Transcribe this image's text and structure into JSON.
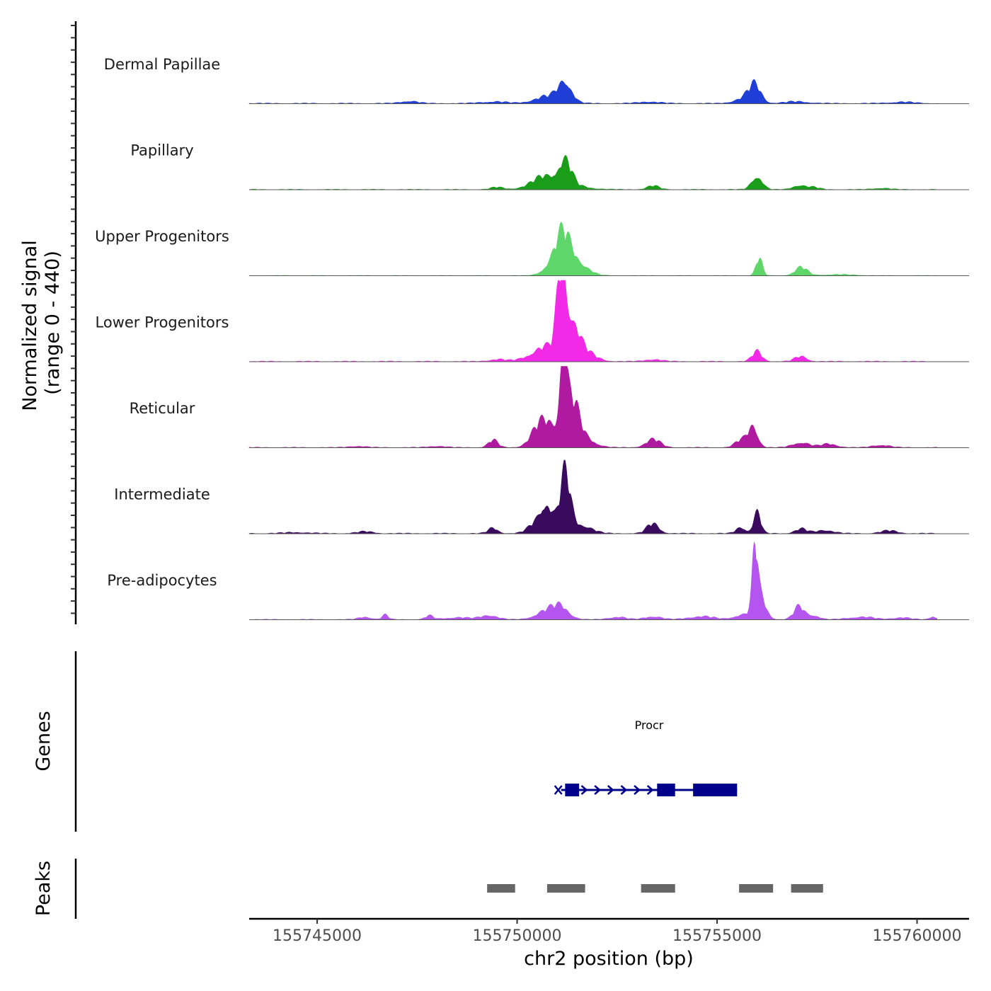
{
  "chart_data": {
    "type": "area",
    "title": "",
    "chromosome": "chr2",
    "xlabel": "chr2 position (bp)",
    "ylabel": "Normalized signal",
    "ylabel_range": "(range 0 - 440)",
    "ylim": [
      0,
      440
    ],
    "xlim": [
      155743300,
      155761300
    ],
    "x_ticks": [
      155745000,
      155750000,
      155755000,
      155760000
    ],
    "x_tick_labels": [
      "155745000",
      "155750000",
      "155755000",
      "155760000"
    ],
    "signal_start": 155743300,
    "signal_end": 155760500,
    "tracks": [
      {
        "name": "Dermal Papillae",
        "color": "#1f3fd6",
        "peaks": [
          [
            155751200,
            115,
            160
          ],
          [
            155750800,
            40,
            350
          ],
          [
            155755950,
            90,
            150
          ],
          [
            155755700,
            30,
            250
          ],
          [
            155747300,
            14,
            200
          ],
          [
            155749400,
            10,
            300
          ],
          [
            155753300,
            10,
            250
          ],
          [
            155757000,
            10,
            300
          ],
          [
            155759600,
            8,
            300
          ]
        ],
        "baseline": 4
      },
      {
        "name": "Papillary",
        "color": "#1a9e1a",
        "peaks": [
          [
            155751200,
            125,
            150
          ],
          [
            155750700,
            45,
            300
          ],
          [
            155751000,
            40,
            500
          ],
          [
            155756000,
            80,
            130
          ],
          [
            155753400,
            20,
            150
          ],
          [
            155749500,
            12,
            150
          ],
          [
            155757050,
            25,
            150
          ],
          [
            155757400,
            12,
            150
          ],
          [
            155759100,
            8,
            200
          ]
        ],
        "baseline": 3
      },
      {
        "name": "Upper Progenitors",
        "color": "#5ed66a",
        "peaks": [
          [
            155751150,
            200,
            180
          ],
          [
            155751500,
            80,
            250
          ],
          [
            155750850,
            60,
            200
          ],
          [
            155756050,
            95,
            80
          ],
          [
            155757100,
            45,
            150
          ],
          [
            155758000,
            6,
            400
          ]
        ],
        "baseline": 2
      },
      {
        "name": "Lower Progenitors",
        "color": "#f229e6",
        "peaks": [
          [
            155751100,
            400,
            100
          ],
          [
            155751300,
            220,
            200
          ],
          [
            155750700,
            80,
            350
          ],
          [
            155751600,
            60,
            300
          ],
          [
            155756000,
            55,
            120
          ],
          [
            155757100,
            28,
            150
          ],
          [
            155749500,
            12,
            200
          ],
          [
            155753400,
            12,
            200
          ]
        ],
        "baseline": 4
      },
      {
        "name": "Reticular",
        "color": "#b01aa0",
        "peaks": [
          [
            155751150,
            430,
            80
          ],
          [
            155751350,
            250,
            180
          ],
          [
            155750800,
            130,
            250
          ],
          [
            155750500,
            60,
            200
          ],
          [
            155751700,
            50,
            250
          ],
          [
            155755900,
            120,
            120
          ],
          [
            155755600,
            40,
            150
          ],
          [
            155753400,
            45,
            180
          ],
          [
            155749400,
            40,
            120
          ],
          [
            155757100,
            30,
            200
          ],
          [
            155757800,
            20,
            200
          ],
          [
            155759100,
            15,
            200
          ],
          [
            155746000,
            8,
            200
          ],
          [
            155748000,
            8,
            200
          ]
        ],
        "baseline": 3
      },
      {
        "name": "Intermediate",
        "color": "#3a0a5e",
        "peaks": [
          [
            155751200,
            320,
            130
          ],
          [
            155750750,
            150,
            150
          ],
          [
            155750500,
            60,
            200
          ],
          [
            155751600,
            50,
            250
          ],
          [
            155756000,
            120,
            90
          ],
          [
            155755600,
            35,
            120
          ],
          [
            155753400,
            55,
            150
          ],
          [
            155749400,
            30,
            120
          ],
          [
            155757100,
            25,
            150
          ],
          [
            155757700,
            20,
            200
          ],
          [
            155759300,
            15,
            200
          ],
          [
            155746200,
            10,
            200
          ],
          [
            155744500,
            6,
            300
          ]
        ],
        "baseline": 4
      },
      {
        "name": "Pre-adipocytes",
        "color": "#b455f0",
        "peaks": [
          [
            155755950,
            310,
            60
          ],
          [
            155756050,
            150,
            150
          ],
          [
            155755600,
            25,
            200
          ],
          [
            155757050,
            70,
            130
          ],
          [
            155757400,
            25,
            150
          ],
          [
            155751100,
            70,
            200
          ],
          [
            155750700,
            45,
            250
          ],
          [
            155749300,
            25,
            200
          ],
          [
            155747800,
            20,
            100
          ],
          [
            155746700,
            25,
            80
          ],
          [
            155746200,
            15,
            150
          ],
          [
            155748500,
            12,
            300
          ],
          [
            155752500,
            15,
            200
          ],
          [
            155753400,
            18,
            200
          ],
          [
            155754600,
            18,
            300
          ],
          [
            155758600,
            15,
            300
          ],
          [
            155759600,
            12,
            200
          ],
          [
            155760400,
            18,
            80
          ]
        ],
        "baseline": 3
      }
    ],
    "genes_track_label": "Genes",
    "genes": [
      {
        "name": "Procr",
        "strand": "+",
        "start": 155751100,
        "end": 155755500,
        "color": "#00008b",
        "exons": [
          [
            155751200,
            155751550
          ],
          [
            155753500,
            155753950
          ],
          [
            155754400,
            155755500
          ]
        ]
      }
    ],
    "peaks_track_label": "Peaks",
    "peak_regions": [
      [
        155749250,
        155749950
      ],
      [
        155750750,
        155751700
      ],
      [
        155753100,
        155753950
      ],
      [
        155755550,
        155756400
      ],
      [
        155756850,
        155757650
      ]
    ],
    "peak_color": "#666666"
  }
}
